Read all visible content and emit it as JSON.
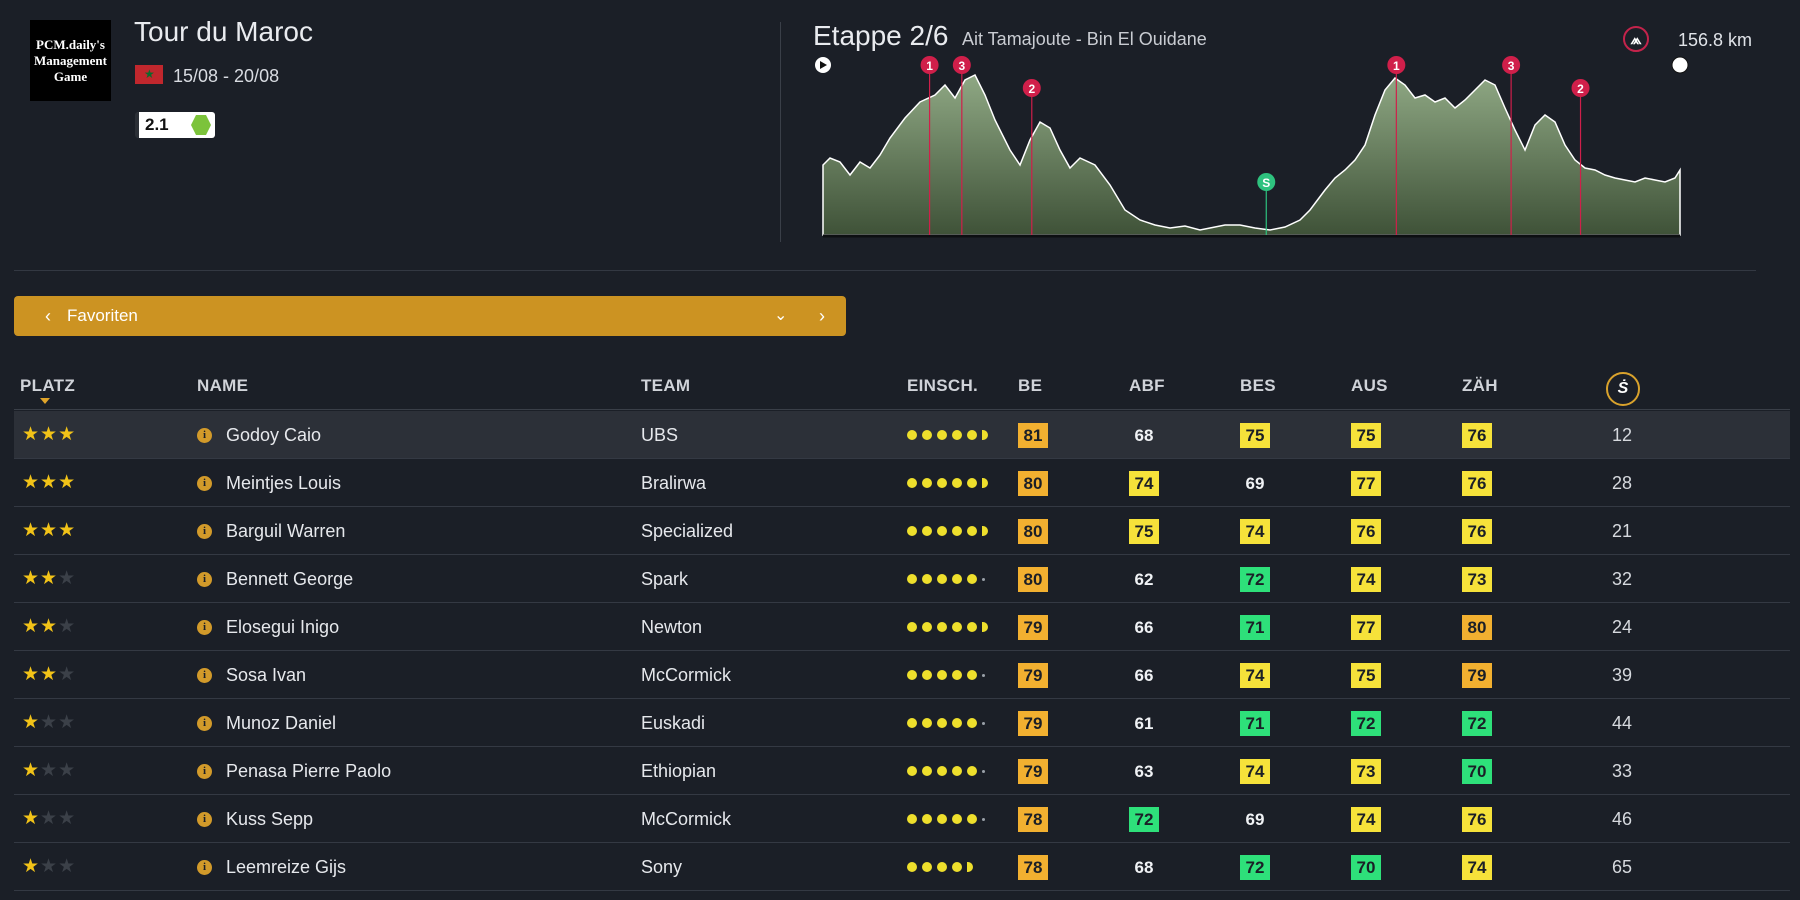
{
  "race": {
    "logo_text": "PCM.daily's Management Game",
    "title": "Tour du Maroc",
    "dates": "15/08 - 20/08",
    "category": "2.1"
  },
  "stage": {
    "title": "Etappe 2/6",
    "route": "Ait Tamajoute - Bin El Ouidane",
    "distance": "156.8 km",
    "profile_markers": [
      {
        "label": "1",
        "type": "climb",
        "km": 19.5
      },
      {
        "label": "3",
        "type": "climb",
        "km": 25.4
      },
      {
        "label": "2",
        "type": "climb",
        "km": 38.2
      },
      {
        "label": "S",
        "type": "sprint",
        "km": 81.1
      },
      {
        "label": "1",
        "type": "climb",
        "km": 104.9
      },
      {
        "label": "3",
        "type": "climb",
        "km": 125.9
      },
      {
        "label": "2",
        "type": "climb",
        "km": 138.6
      }
    ]
  },
  "filter": {
    "label": "Favoriten",
    "prev_icon": "chevron-left-icon",
    "next_icon": "chevron-right-icon",
    "dropdown_icon": "chevron-down-icon"
  },
  "table": {
    "headers": {
      "platz": "PLATZ",
      "name": "NAME",
      "team": "TEAM",
      "einsch": "EINSCH.",
      "be": "BE",
      "abf": "ABF",
      "bes": "BES",
      "aus": "AUS",
      "zah": "ZÄH"
    },
    "icon_header": "rider-icon",
    "rows": [
      {
        "stars": 3,
        "name": "Godoy Caio",
        "team": "UBS",
        "dots": 5.5,
        "be": "81",
        "abf": "68",
        "bes": "75",
        "aus": "75",
        "zah": "76",
        "num": "12"
      },
      {
        "stars": 3,
        "name": "Meintjes Louis",
        "team": "Bralirwa",
        "dots": 5.5,
        "be": "80",
        "abf": "74",
        "bes": "69",
        "aus": "77",
        "zah": "76",
        "num": "28"
      },
      {
        "stars": 3,
        "name": "Barguil Warren",
        "team": "Specialized",
        "dots": 5.5,
        "be": "80",
        "abf": "75",
        "bes": "74",
        "aus": "76",
        "zah": "76",
        "num": "21"
      },
      {
        "stars": 2,
        "name": "Bennett George",
        "team": "Spark",
        "dots": 5,
        "be": "80",
        "abf": "62",
        "bes": "72",
        "aus": "74",
        "zah": "73",
        "num": "32"
      },
      {
        "stars": 2,
        "name": "Elosegui Inigo",
        "team": "Newton",
        "dots": 5.5,
        "be": "79",
        "abf": "66",
        "bes": "71",
        "aus": "77",
        "zah": "80",
        "num": "24"
      },
      {
        "stars": 2,
        "name": "Sosa Ivan",
        "team": "McCormick",
        "dots": 5,
        "be": "79",
        "abf": "66",
        "bes": "74",
        "aus": "75",
        "zah": "79",
        "num": "39"
      },
      {
        "stars": 1,
        "name": "Munoz Daniel",
        "team": "Euskadi",
        "dots": 5,
        "be": "79",
        "abf": "61",
        "bes": "71",
        "aus": "72",
        "zah": "72",
        "num": "44"
      },
      {
        "stars": 1,
        "name": "Penasa Pierre Paolo",
        "team": "Ethiopian",
        "dots": 5,
        "be": "79",
        "abf": "63",
        "bes": "74",
        "aus": "73",
        "zah": "70",
        "num": "33"
      },
      {
        "stars": 1,
        "name": "Kuss Sepp",
        "team": "McCormick",
        "dots": 5,
        "be": "78",
        "abf": "72",
        "bes": "69",
        "aus": "74",
        "zah": "76",
        "num": "46"
      },
      {
        "stars": 1,
        "name": "Leemreize Gijs",
        "team": "Sony",
        "dots": 4.5,
        "be": "78",
        "abf": "68",
        "bes": "72",
        "aus": "70",
        "zah": "74",
        "num": "65"
      }
    ]
  },
  "colors": {
    "background": "#1b1f27",
    "accent": "#cc9322",
    "stat_orange": "#f2b030",
    "stat_yellow": "#f6e23a",
    "stat_green": "#2ee07a",
    "climb_marker": "#d01f4a",
    "sprint_marker": "#2ec27e"
  }
}
